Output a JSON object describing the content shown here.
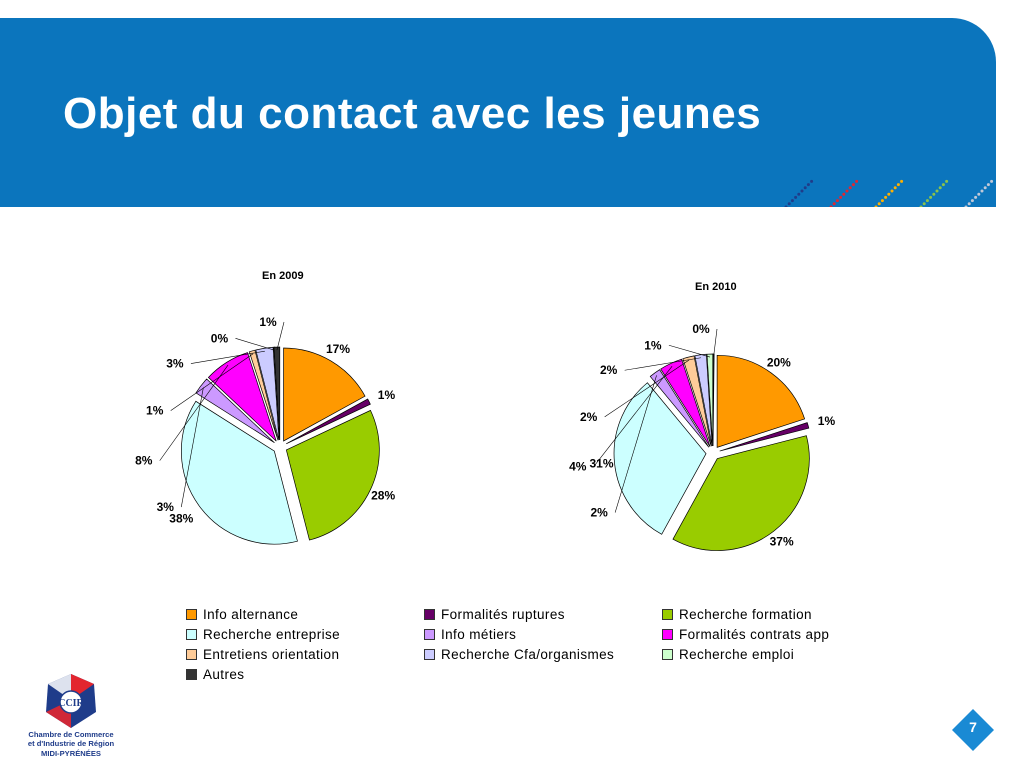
{
  "slide": {
    "title": "Objet du contact avec les jeunes",
    "page_number": "7"
  },
  "logo": {
    "monogram": "CCIR",
    "line1": "Chambre de Commerce",
    "line2": "et d'Industrie de Région",
    "line3": "MIDI-PYRÉNÉES"
  },
  "colors": {
    "header_blue": "#0b75bd",
    "categories": [
      "#ff9900",
      "#660066",
      "#99cc00",
      "#ccffff",
      "#cc99ff",
      "#ff00ff",
      "#ffcc99",
      "#ccccff",
      "#ccffcc",
      "#333333"
    ]
  },
  "chart_data": [
    {
      "type": "pie",
      "title": "En 2009",
      "categories": [
        "Info alternance",
        "Formalités ruptures",
        "Recherche formation",
        "Recherche entreprise",
        "Info métiers",
        "Formalités contrats app",
        "Entretiens orientation",
        "Recherche Cfa/organismes",
        "Recherche emploi",
        "Autres"
      ],
      "values": [
        17,
        1,
        28,
        38,
        3,
        8,
        1,
        3,
        0,
        1
      ],
      "data_labels": [
        "17%",
        "1%",
        "28%",
        "38%",
        "3%",
        "8%",
        "1%",
        "3%",
        "0%",
        "1%"
      ],
      "exploded": true,
      "legend": "bottom"
    },
    {
      "type": "pie",
      "title": "En 2010",
      "categories": [
        "Info alternance",
        "Formalités ruptures",
        "Recherche formation",
        "Recherche entreprise",
        "Info métiers",
        "Formalités contrats app",
        "Entretiens orientation",
        "Recherche Cfa/organismes",
        "Recherche emploi",
        "Autres"
      ],
      "values": [
        20,
        1,
        37,
        31,
        2,
        4,
        2,
        2,
        1,
        0
      ],
      "data_labels": [
        "20%",
        "1%",
        "37%",
        "31%",
        "2%",
        "4%",
        "2%",
        "2%",
        "1%",
        "0%"
      ],
      "exploded": true,
      "legend": "bottom"
    }
  ]
}
